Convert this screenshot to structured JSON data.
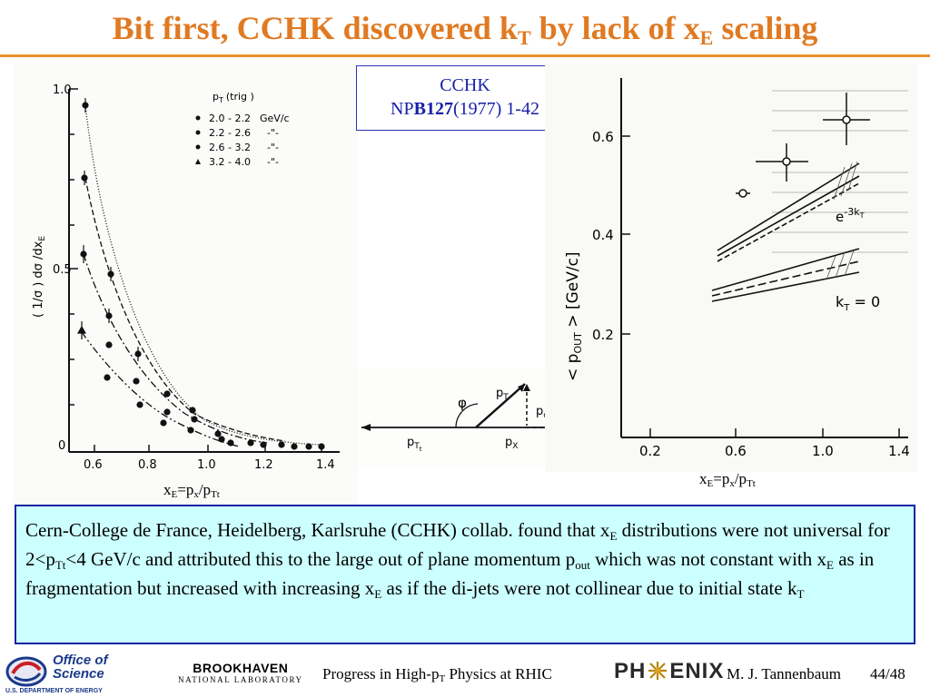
{
  "title": {
    "main": "Bit first, CCHK discovered k",
    "sub1": "T",
    "mid": " by lack of x",
    "sub2": "E",
    "end": " scaling"
  },
  "reference": {
    "line1": "CCHK",
    "prefix": "NP",
    "volume": "B127",
    "rest": "(1977) 1-42"
  },
  "left_plot": {
    "ylabel": "( 1/σ ) dσ /dx",
    "ylabel_sub": "E",
    "legend_title": "p",
    "legend_title_sub": "T",
    "legend_title_rest": "(trig )",
    "legend": [
      {
        "range": "2.0 - 2.2",
        "unit": "GeV/c"
      },
      {
        "range": "2.2 - 2.6",
        "unit": "-\"-"
      },
      {
        "range": "2.6 - 3.2",
        "unit": "-\"-"
      },
      {
        "range": "3.2 - 4.0",
        "unit": "-\"-"
      }
    ],
    "yticks": [
      "1.0",
      "0.5",
      "0"
    ],
    "xticks": [
      "0.6",
      "0.8",
      "1.0",
      "1.2",
      "1.4"
    ],
    "xaxis_label": {
      "a": "x",
      "a_sub": "E",
      "b": "=p",
      "b_sub": "x",
      "c": "/p",
      "c_sub": "Tt"
    }
  },
  "right_plot": {
    "ylabel": "< p",
    "ylabel_sub": "OUT",
    "ylabel_rest": " >  [GeV/c]",
    "yticks": [
      "0.6",
      "0.4",
      "0.2"
    ],
    "xticks": [
      "0.2",
      "0.6",
      "1.0",
      "1.4"
    ],
    "curve_label_top": "e",
    "curve_label_top_sup": "-3k",
    "curve_label_top_sup_sub": "T",
    "curve_label_bottom": "k",
    "curve_label_bottom_sub": "T",
    "curve_label_bottom_rest": " = 0",
    "xaxis_label": {
      "a": "x",
      "a_sub": "E",
      "b": "=p",
      "b_sub": "x",
      "c": "/p",
      "c_sub": "Tt"
    }
  },
  "kinematics": {
    "phi": "φ",
    "pT": "p",
    "pT_sub": "T",
    "pout": "p",
    "pout_sub": "out",
    "pTt": "p",
    "pTt_sub": "T",
    "pTt_sub2": "t",
    "px": "p",
    "px_sub": "X"
  },
  "text_box": {
    "s1": "Cern-College de France, Heidelberg, Karlsruhe (CCHK) collab. found that x",
    "s1_sub": "E",
    "s2": " distributions were not universal for 2<p",
    "s2_sub": "Tt",
    "s3": "<4 GeV/c and attributed this to the large out of plane momentum p",
    "s3_sub": "out",
    "s4": " which was not constant with x",
    "s4_sub": "E",
    "s5": " as in fragmentation but increased with increasing x",
    "s5_sub": "E",
    "s6": " as if the di-jets were not collinear due to initial state k",
    "s6_sub": "T"
  },
  "footer": {
    "doe_line1": "Office of",
    "doe_line2": "Science",
    "doe_line3": "U.S. DEPARTMENT OF ENERGY",
    "bnl_line1": "BROOKHAVEN",
    "bnl_line2": "NATIONAL LABORATORY",
    "talk_a": "Progress in High-p",
    "talk_sub": "T",
    "talk_b": " Physics at RHIC",
    "phenix_a": "PH",
    "phenix_b": "ENIX",
    "author": "M. J. Tannenbaum",
    "page": "44/48"
  },
  "colors": {
    "title": "#e07a22",
    "rule": "#e8922e",
    "box_fill": "#ccffff",
    "box_border": "#1a24a0",
    "ref_text": "#1820a8"
  }
}
